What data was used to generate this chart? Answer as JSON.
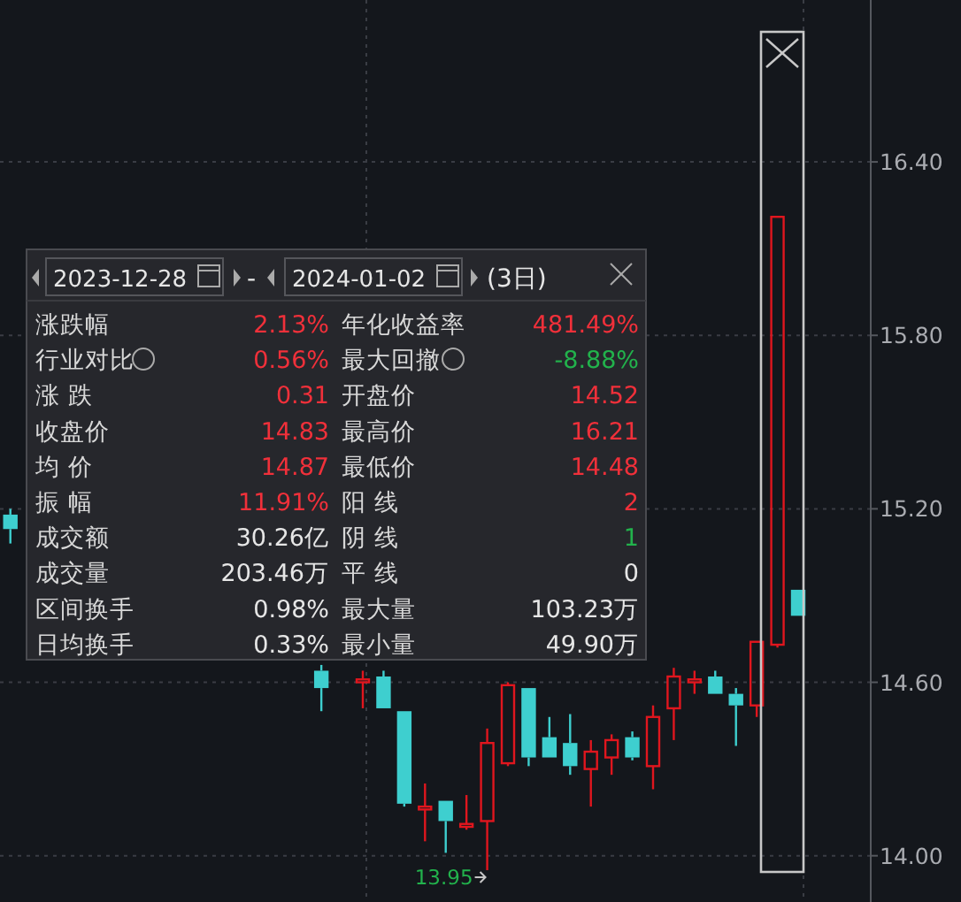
{
  "chart_data": [
    {
      "type": "candlestick",
      "categories": [
        null,
        null,
        null,
        null,
        null,
        null,
        null,
        null,
        null,
        null,
        null,
        null,
        null,
        null,
        null,
        null,
        null,
        null,
        null,
        null,
        null,
        null,
        null,
        null,
        null,
        null,
        null,
        null,
        null,
        null,
        null,
        null,
        null,
        null,
        null,
        null,
        null,
        null,
        null,
        null,
        null,
        null
      ],
      "ohlc": [
        [
          15.18,
          15.2,
          15.08,
          15.13
        ],
        null,
        null,
        null,
        null,
        null,
        null,
        null,
        null,
        null,
        null,
        null,
        null,
        null,
        null,
        [
          14.64,
          14.66,
          14.5,
          14.58
        ],
        null,
        [
          14.6,
          14.64,
          14.51,
          14.61
        ],
        [
          14.62,
          14.64,
          14.51,
          14.51
        ],
        [
          14.5,
          14.5,
          14.17,
          14.18
        ],
        [
          14.16,
          14.25,
          14.05,
          14.17
        ],
        [
          14.19,
          14.19,
          14.01,
          14.12
        ],
        [
          14.1,
          14.21,
          14.09,
          14.11
        ],
        [
          14.12,
          14.44,
          13.95,
          14.39
        ],
        [
          14.32,
          14.6,
          14.31,
          14.59
        ],
        [
          14.58,
          14.58,
          14.31,
          14.34
        ],
        [
          14.41,
          14.48,
          14.34,
          14.34
        ],
        [
          14.39,
          14.49,
          14.28,
          14.31
        ],
        [
          14.3,
          14.4,
          14.17,
          14.36
        ],
        [
          14.34,
          14.42,
          14.28,
          14.4
        ],
        [
          14.41,
          14.43,
          14.33,
          14.34
        ],
        [
          14.31,
          14.52,
          14.23,
          14.48
        ],
        [
          14.51,
          14.65,
          14.4,
          14.62
        ],
        [
          14.6,
          14.64,
          14.56,
          14.61
        ],
        [
          14.62,
          14.64,
          14.56,
          14.56
        ],
        [
          14.56,
          14.58,
          14.38,
          14.52
        ],
        [
          14.52,
          14.74,
          14.48,
          14.74
        ],
        [
          14.73,
          16.21,
          14.72,
          16.21
        ],
        [
          14.92,
          14.92,
          14.83,
          14.83
        ],
        null,
        null,
        null
      ],
      "ylim": [
        13.84,
        16.96
      ],
      "yticks": [
        {
          "value": 14,
          "label": "14.00"
        },
        {
          "value": 14.6,
          "label": "14.60"
        },
        {
          "value": 15.2,
          "label": "15.20"
        },
        {
          "value": 15.8,
          "label": "15.80"
        },
        {
          "value": 16.4,
          "label": "16.40"
        }
      ],
      "grid": "y",
      "annotations": [
        "13.95"
      ]
    },
    {
      "type": "other",
      "annotations": [
        "2023-12-28",
        "-",
        "2024-01-02",
        "(3日)",
        "涨跌幅",
        "2.13%",
        "年化收益率",
        "481.49%",
        "行业对比",
        "0.56%",
        "最大回撤",
        "-8.88%",
        "涨 跌",
        "0.31",
        "开盘价",
        "14.52",
        "收盘价",
        "14.83",
        "最高价",
        "16.21",
        "均 价",
        "14.87",
        "最低价",
        "14.48",
        "振 幅",
        "11.91%",
        "阳 线",
        "2",
        "成交额",
        "30.26亿",
        "阴 线",
        "1",
        "成交量",
        "203.46万",
        "平 线",
        "0",
        "区间换手",
        "0.98%",
        "最大量",
        "103.23万",
        "日均换手",
        "0.33%",
        "最小量",
        "49.90万"
      ],
      "colors": [
        "#e6e6e6",
        "#e6e6e6",
        "#e6e6e6",
        "#e6e6e6",
        "#d8d8d8",
        "#f0303a",
        "#d8d8d8",
        "#f0303a",
        "#d8d8d8",
        "#f0303a",
        "#d8d8d8",
        "#22b24c",
        "#d8d8d8",
        "#f0303a",
        "#d8d8d8",
        "#f0303a",
        "#d8d8d8",
        "#f0303a",
        "#d8d8d8",
        "#f0303a",
        "#d8d8d8",
        "#f0303a",
        "#d8d8d8",
        "#f0303a",
        "#d8d8d8",
        "#f0303a",
        "#d8d8d8",
        "#f0303a",
        "#d8d8d8",
        "#e6e6e6",
        "#d8d8d8",
        "#22b24c",
        "#d8d8d8",
        "#e6e6e6",
        "#d8d8d8",
        "#e6e6e6",
        "#d8d8d8",
        "#e6e6e6",
        "#d8d8d8",
        "#e6e6e6",
        "#d8d8d8",
        "#e6e6e6",
        "#d8d8d8",
        "#e6e6e6"
      ]
    }
  ]
}
